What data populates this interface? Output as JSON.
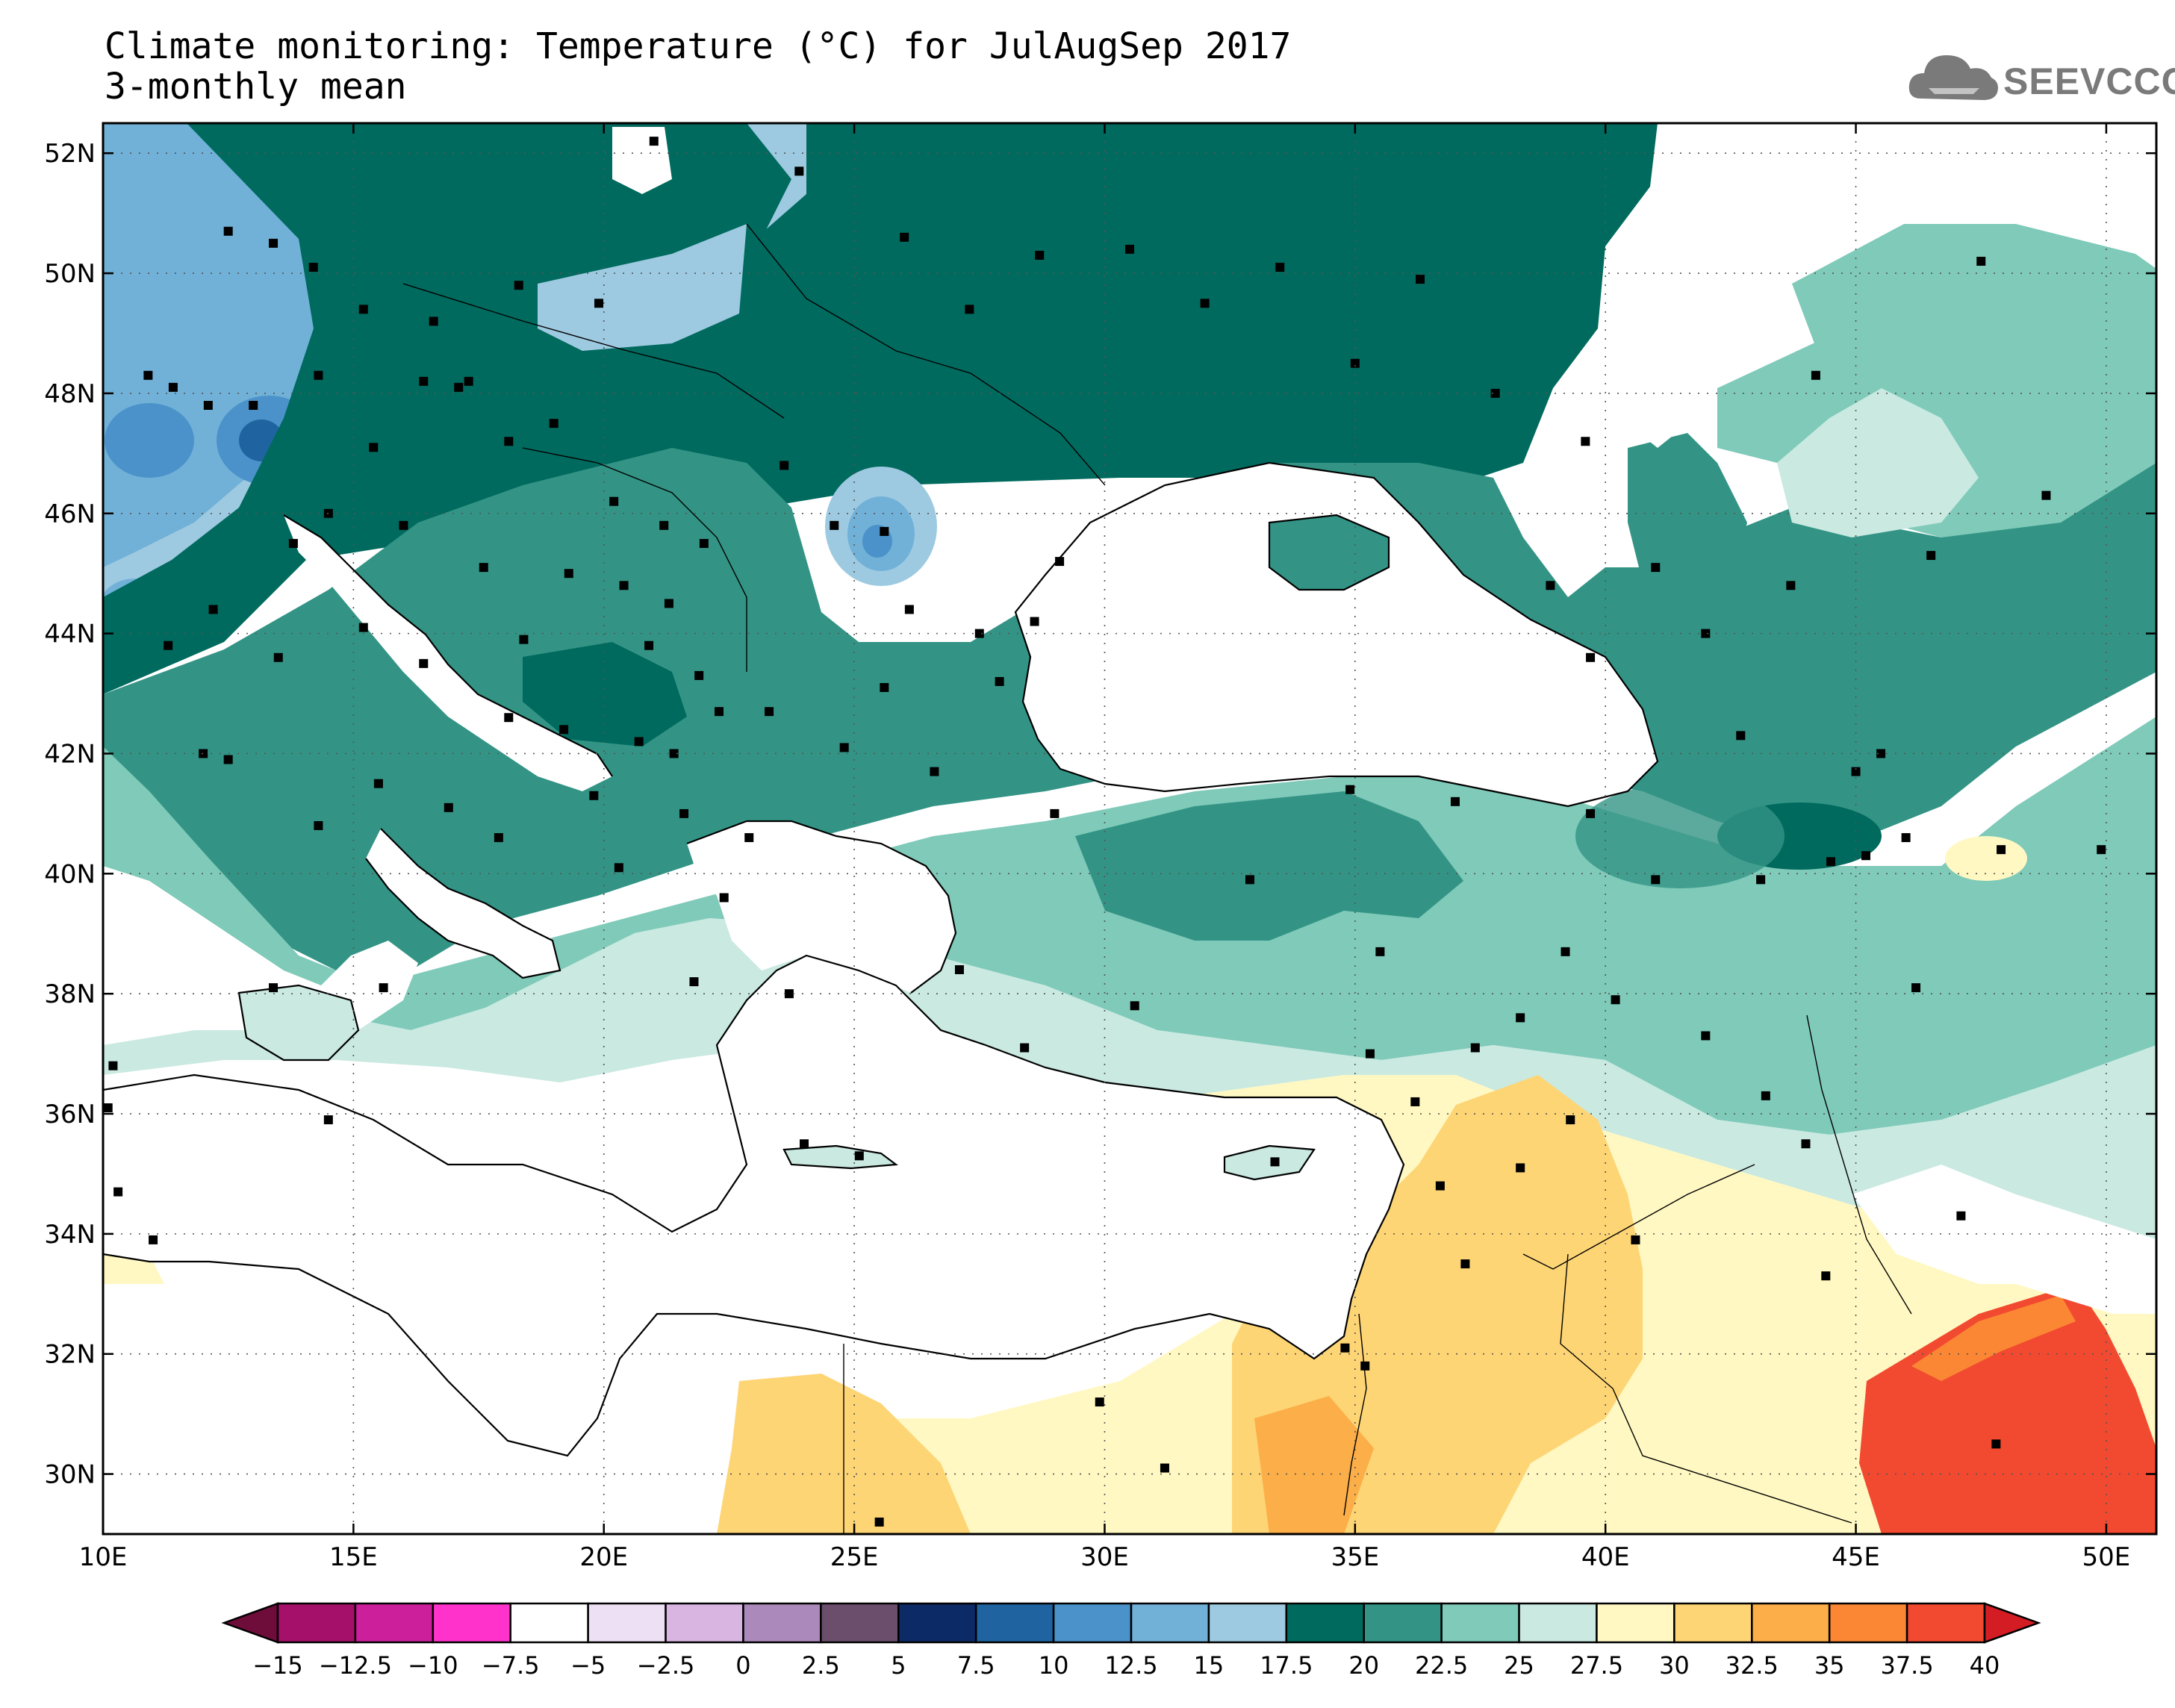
{
  "title": {
    "line1": "Climate monitoring: Temperature (°C) for JulAugSep 2017",
    "line2": "3-monthly mean"
  },
  "logo": {
    "text": "SEEVCCC",
    "icon": "cloud-icon",
    "color": "#7a7a7a"
  },
  "map": {
    "lon_range": [
      10,
      51
    ],
    "lat_range": [
      29,
      52.5
    ],
    "x_ticks": [
      "10E",
      "15E",
      "20E",
      "25E",
      "30E",
      "35E",
      "40E",
      "45E",
      "50E"
    ],
    "y_ticks": [
      "30N",
      "32N",
      "34N",
      "36N",
      "38N",
      "40N",
      "42N",
      "44N",
      "46N",
      "48N",
      "50N",
      "52N"
    ],
    "grid": "dotted"
  },
  "colorbar": {
    "labels": [
      "-15",
      "-12.5",
      "-10",
      "-7.5",
      "-5",
      "-2.5",
      "0",
      "2.5",
      "5",
      "7.5",
      "10",
      "12.5",
      "15",
      "17.5",
      "20",
      "22.5",
      "25",
      "27.5",
      "30",
      "32.5",
      "35",
      "37.5",
      "40"
    ],
    "colors": [
      "#6e0c3a",
      "#a5106a",
      "#cc1f9c",
      "#ff33cc",
      "#ffffff",
      "#eee0f4",
      "#d9b6e2",
      "#ab8abb",
      "#6a4e6b",
      "#0c2a66",
      "#1f64a0",
      "#4a92c9",
      "#71b1d8",
      "#9ecae1",
      "#006a5e",
      "#339485",
      "#7fcab9",
      "#c9e9e1",
      "#fff8c2",
      "#fed575",
      "#fcae48",
      "#fb8734",
      "#f24a30",
      "#d31c24"
    ]
  }
}
